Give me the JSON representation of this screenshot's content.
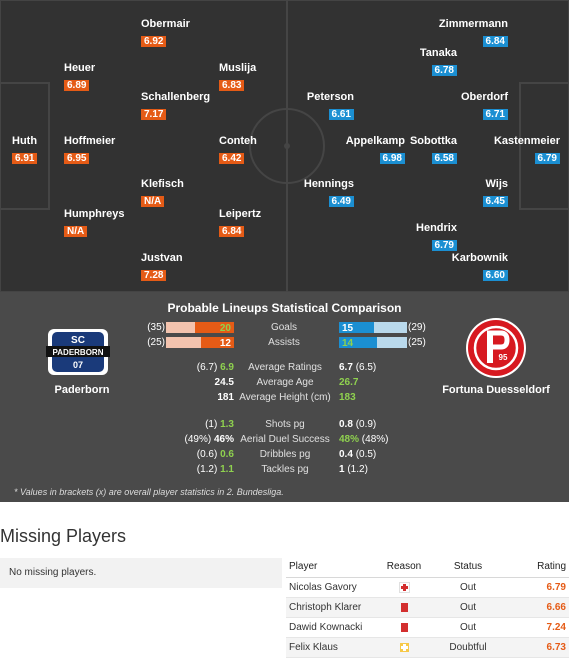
{
  "home_team": {
    "name": "Paderborn",
    "players": [
      {
        "name": "Obermair",
        "rating": "6.92"
      },
      {
        "name": "Heuer",
        "rating": "6.89"
      },
      {
        "name": "Muslija",
        "rating": "6.83"
      },
      {
        "name": "Schallenberg",
        "rating": "7.17"
      },
      {
        "name": "Huth",
        "rating": "6.91"
      },
      {
        "name": "Hoffmeier",
        "rating": "6.95"
      },
      {
        "name": "Conteh",
        "rating": "6.42"
      },
      {
        "name": "Klefisch",
        "rating": "N/A"
      },
      {
        "name": "Humphreys",
        "rating": "N/A"
      },
      {
        "name": "Leipertz",
        "rating": "6.84"
      },
      {
        "name": "Justvan",
        "rating": "7.28"
      }
    ],
    "crest": {
      "top": "SC",
      "middle": "PADERBORN",
      "bottom": "07"
    }
  },
  "away_team": {
    "name": "Fortuna Duesseldorf",
    "players": [
      {
        "name": "Zimmermann",
        "rating": "6.84"
      },
      {
        "name": "Tanaka",
        "rating": "6.78"
      },
      {
        "name": "Peterson",
        "rating": "6.61"
      },
      {
        "name": "Oberdorf",
        "rating": "6.71"
      },
      {
        "name": "Appelkamp",
        "rating": "6.98"
      },
      {
        "name": "Sobottka",
        "rating": "6.58"
      },
      {
        "name": "Kastenmeier",
        "rating": "6.79"
      },
      {
        "name": "Hennings",
        "rating": "6.49"
      },
      {
        "name": "Wijs",
        "rating": "6.45"
      },
      {
        "name": "Hendrix",
        "rating": "6.79"
      },
      {
        "name": "Karbownik",
        "rating": "6.60"
      }
    ],
    "crest_text": "95"
  },
  "comparison": {
    "title": "Probable Lineups Statistical Comparison",
    "bars": [
      {
        "label": "Goals",
        "home_prev": "(35)",
        "home_val": "20",
        "home_fraction": 0.57,
        "away_val": "15",
        "away_prev": "(29)",
        "away_fraction": 0.52
      },
      {
        "label": "Assists",
        "home_prev": "(25)",
        "home_val": "12",
        "home_fraction": 0.48,
        "away_val": "14",
        "away_prev": "(25)",
        "away_fraction": 0.56
      }
    ],
    "rows_a": [
      {
        "label": "Average Ratings",
        "home_prev": "(6.7)",
        "home_val": "6.9",
        "home_green": true,
        "away_val": "6.7",
        "away_prev": "(6.5)",
        "away_green": false
      },
      {
        "label": "Average Age",
        "home_prev": "",
        "home_val": "24.5",
        "home_green": false,
        "away_val": "26.7",
        "away_prev": "",
        "away_green": true
      },
      {
        "label": "Average Height (cm)",
        "home_prev": "",
        "home_val": "181",
        "home_green": false,
        "away_val": "183",
        "away_prev": "",
        "away_green": true
      }
    ],
    "rows_b": [
      {
        "label": "Shots pg",
        "home_prev": "(1)",
        "home_val": "1.3",
        "home_green": true,
        "away_val": "0.8",
        "away_prev": "(0.9)",
        "away_green": false
      },
      {
        "label": "Aerial Duel Success",
        "home_prev": "(49%)",
        "home_val": "46%",
        "home_green": false,
        "away_val": "48%",
        "away_prev": "(48%)",
        "away_green": true
      },
      {
        "label": "Dribbles pg",
        "home_prev": "(0.6)",
        "home_val": "0.6",
        "home_green": true,
        "away_val": "0.4",
        "away_prev": "(0.5)",
        "away_green": false
      },
      {
        "label": "Tackles pg",
        "home_prev": "(1.2)",
        "home_val": "1.1",
        "home_green": true,
        "away_val": "1",
        "away_prev": "(1.2)",
        "away_green": false
      }
    ],
    "footnote": "* Values in brackets (x) are overall player statistics in 2. Bundesliga."
  },
  "missing": {
    "title": "Missing Players",
    "home_message": "No missing players.",
    "columns": [
      "Player",
      "Reason",
      "Status",
      "Rating"
    ],
    "rows": [
      {
        "player": "Nicolas Gavory",
        "reason_icon": "injury-icon",
        "status": "Out",
        "rating": "6.79"
      },
      {
        "player": "Christoph Klarer",
        "reason_icon": "red-card-icon",
        "status": "Out",
        "rating": "6.66"
      },
      {
        "player": "Dawid Kownacki",
        "reason_icon": "red-card-icon",
        "status": "Out",
        "rating": "7.24"
      },
      {
        "player": "Felix Klaus",
        "reason_icon": "doubtful-icon",
        "status": "Doubtful",
        "rating": "6.73"
      }
    ]
  },
  "colors": {
    "pitch": "#323232",
    "home_accent": "#e55b16",
    "away_accent": "#1b8fd2",
    "stats_panel": "#4a4a4a",
    "better_value": "#8fd14f"
  }
}
